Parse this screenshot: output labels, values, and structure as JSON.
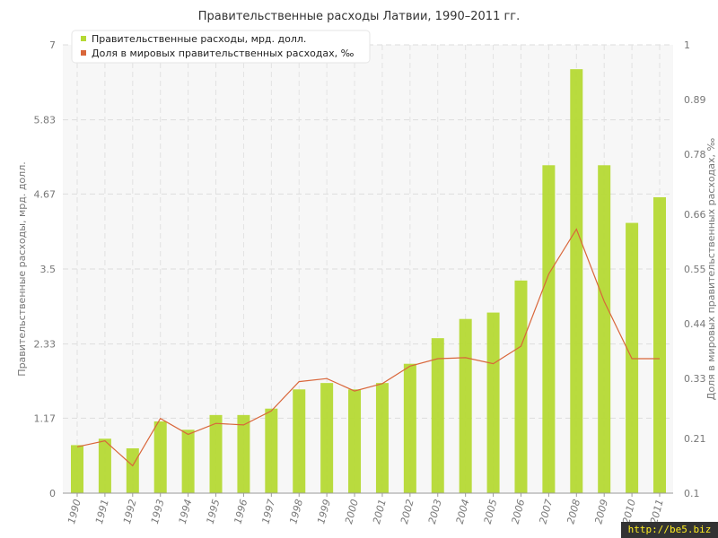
{
  "watermark": "http://be5.biz",
  "chart_data": {
    "type": "bar+line",
    "title": "Правительственные расходы Латвии, 1990–2011 гг.",
    "ylabel_left": "Правительственные расходы, мрд. долл.",
    "ylabel_right": "Доля в мировых правительственных расходах, ‰",
    "categories": [
      "1990",
      "1991",
      "1992",
      "1993",
      "1994",
      "1995",
      "1996",
      "1997",
      "1998",
      "1999",
      "2000",
      "2001",
      "2002",
      "2003",
      "2004",
      "2005",
      "2006",
      "2007",
      "2008",
      "2009",
      "2010",
      "2011"
    ],
    "left_ticks": [
      "0",
      "1.17",
      "2.33",
      "3.5",
      "4.67",
      "5.83",
      "7"
    ],
    "right_ticks": [
      "0.1",
      "0.21",
      "0.33",
      "0.44",
      "0.55",
      "0.66",
      "0.78",
      "0.89",
      "1"
    ],
    "ylim_left": [
      0,
      7
    ],
    "ylim_right": [
      0.1,
      1
    ],
    "grid": true,
    "legend_position": "top-left",
    "series": [
      {
        "name": "Правительственные расходы, мрд. долл.",
        "kind": "bar",
        "color": "#b5d934",
        "axis": "left",
        "values": [
          0.75,
          0.85,
          0.7,
          1.12,
          0.99,
          1.22,
          1.22,
          1.32,
          1.62,
          1.72,
          1.62,
          1.72,
          2.02,
          2.42,
          2.72,
          2.82,
          3.32,
          5.12,
          6.62,
          5.12,
          4.22,
          4.62
        ]
      },
      {
        "name": "Доля в мировых правительственных расходах, ‰",
        "kind": "line",
        "color": "#d9663a",
        "axis": "right",
        "values": [
          0.193,
          0.205,
          0.155,
          0.25,
          0.218,
          0.24,
          0.237,
          0.265,
          0.324,
          0.33,
          0.305,
          0.32,
          0.355,
          0.37,
          0.372,
          0.36,
          0.395,
          0.54,
          0.63,
          0.485,
          0.37,
          0.37
        ]
      }
    ]
  }
}
